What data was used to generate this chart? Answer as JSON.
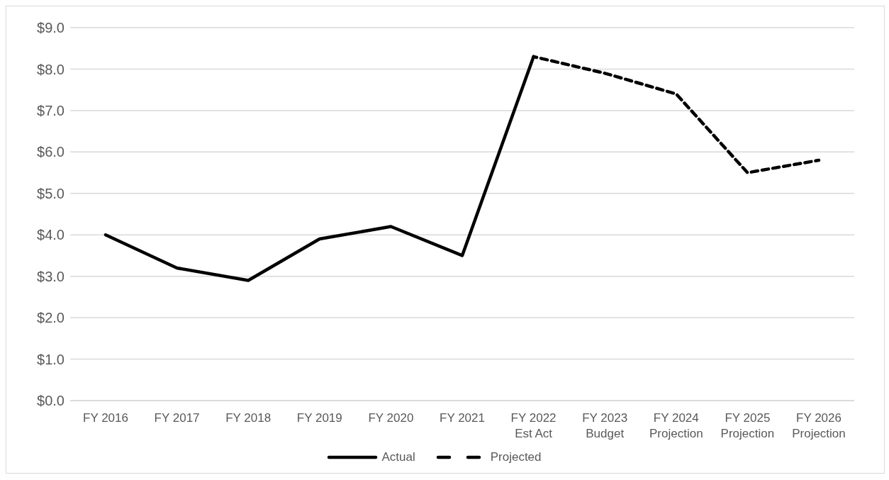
{
  "chart_data": {
    "type": "line",
    "categories": [
      "FY 2016",
      "FY 2017",
      "FY 2018",
      "FY 2019",
      "FY 2020",
      "FY 2021",
      "FY 2022\nEst Act",
      "FY 2023\nBudget",
      "FY 2024\nProjection",
      "FY 2025\nProjection",
      "FY 2026\nProjection"
    ],
    "series": [
      {
        "name": "Actual",
        "color": "#000000",
        "line_style": "solid",
        "values": [
          4.0,
          3.2,
          2.9,
          3.9,
          4.2,
          3.5,
          8.3,
          null,
          null,
          null,
          null
        ]
      },
      {
        "name": "Projected",
        "color": "#000000",
        "line_style": "dashed",
        "values": [
          null,
          null,
          null,
          null,
          null,
          null,
          8.3,
          7.9,
          7.4,
          5.5,
          5.8
        ]
      }
    ],
    "ylim": [
      0,
      9
    ],
    "yticks": [
      {
        "value": 0,
        "label": "$0.0"
      },
      {
        "value": 1,
        "label": "$1.0"
      },
      {
        "value": 2,
        "label": "$2.0"
      },
      {
        "value": 3,
        "label": "$3.0"
      },
      {
        "value": 4,
        "label": "$4.0"
      },
      {
        "value": 5,
        "label": "$5.0"
      },
      {
        "value": 6,
        "label": "$6.0"
      },
      {
        "value": 7,
        "label": "$7.0"
      },
      {
        "value": 8,
        "label": "$8.0"
      },
      {
        "value": 9,
        "label": "$9.0"
      }
    ],
    "grid": "y",
    "legend": "bottom",
    "marker": "none"
  }
}
